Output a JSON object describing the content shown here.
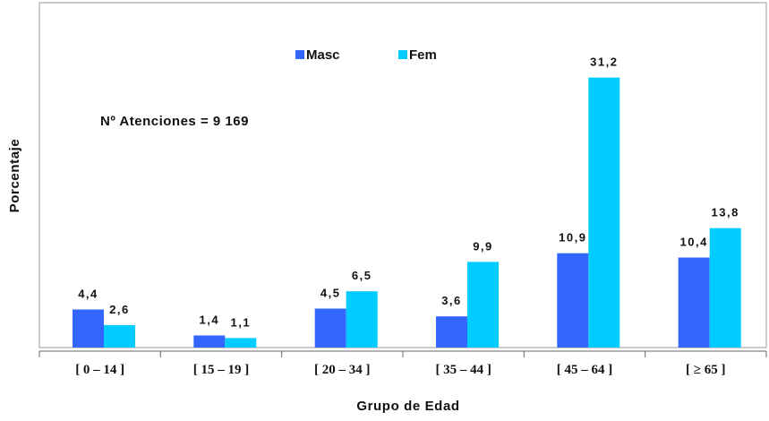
{
  "chart_data": {
    "type": "bar",
    "categories": [
      "[ 0 – 14 ]",
      "[ 15 – 19 ]",
      "[ 20 – 34 ]",
      "[ 35 – 44 ]",
      "[ 45 – 64 ]",
      "[ ≥ 65 ]"
    ],
    "series": [
      {
        "name": "Masc",
        "color": "#3366ff",
        "values": [
          4.4,
          1.4,
          4.5,
          3.6,
          10.9,
          10.4
        ],
        "labels": [
          "4,4",
          "1,4",
          "4,5",
          "3,6",
          "10,9",
          "10,4"
        ]
      },
      {
        "name": "Fem",
        "color": "#00ccff",
        "values": [
          2.6,
          1.1,
          6.5,
          9.9,
          31.2,
          13.8
        ],
        "labels": [
          "2,6",
          "1,1",
          "6,5",
          "9,9",
          "31,2",
          "13,8"
        ]
      }
    ],
    "xlabel": "Grupo de Edad",
    "ylabel": "Porcentaje",
    "annotation": "Nº Atenciones = 9 169",
    "ylim": [
      0,
      36
    ],
    "legend_position": "top-center",
    "grid": false
  }
}
